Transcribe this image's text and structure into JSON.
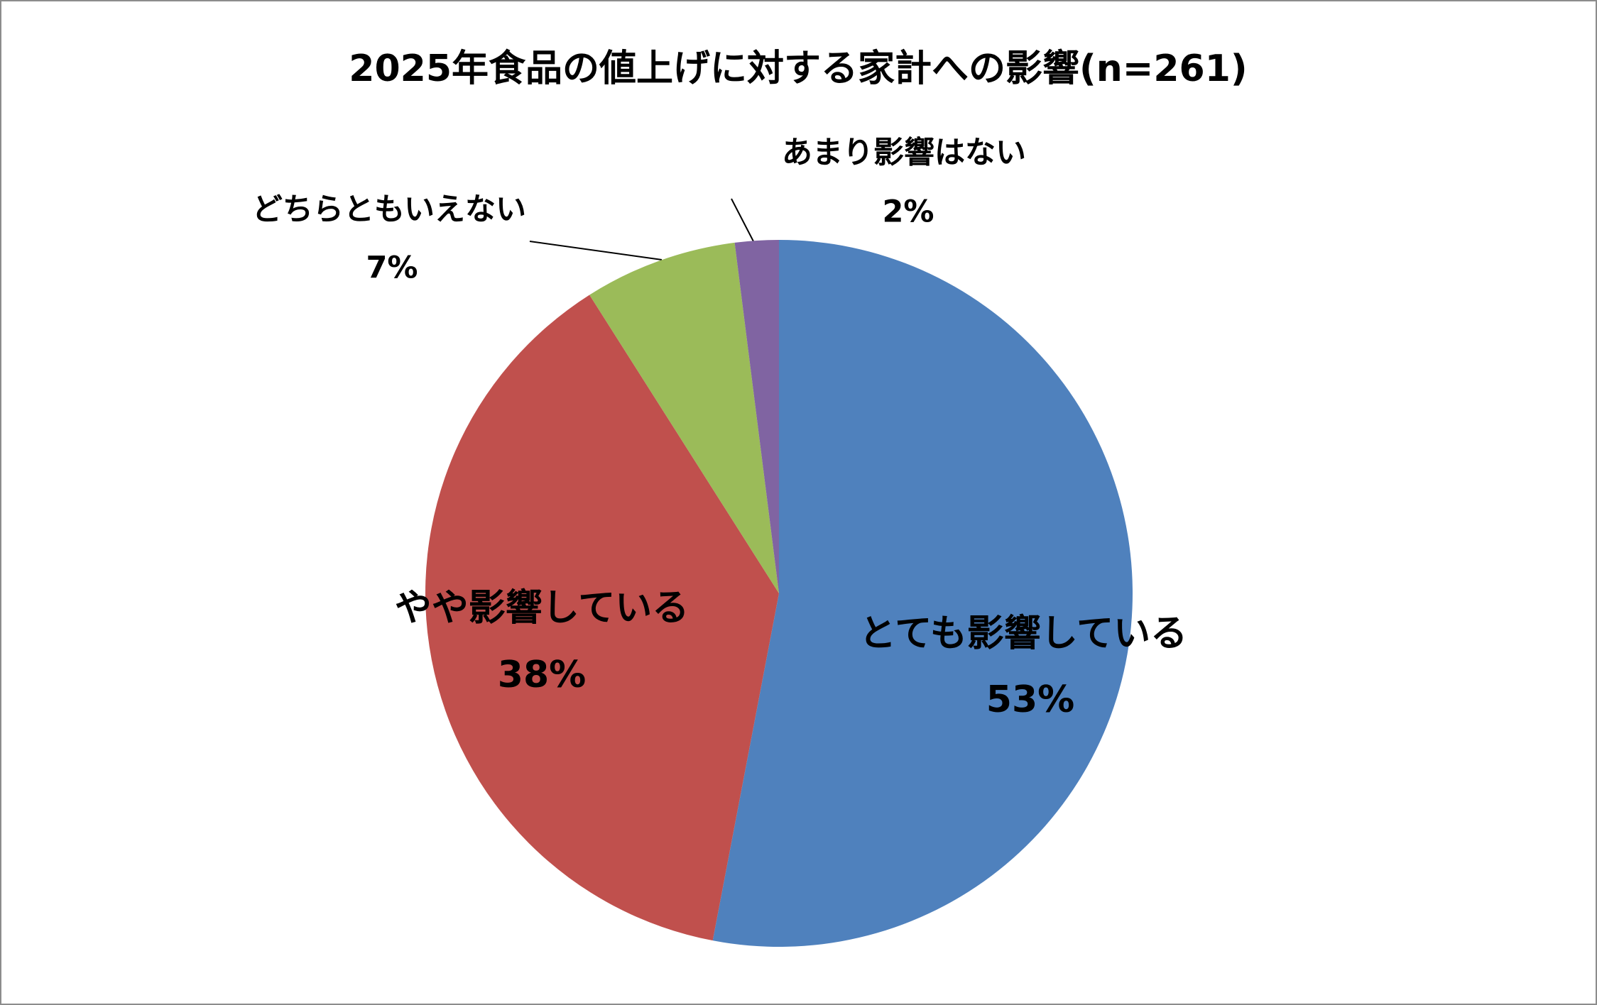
{
  "chart_data": {
    "type": "pie",
    "title": "2025年食品の値上げに対する家計への影響(n=261)",
    "categories": [
      "とても影響している",
      "やや影響している",
      "どちらともいえない",
      "あまり影響はない"
    ],
    "values": [
      53,
      38,
      7,
      2
    ],
    "value_labels": [
      "53%",
      "38%",
      "7%",
      "2%"
    ],
    "colors": [
      "#4f81bd",
      "#c0504d",
      "#9bbb59",
      "#8064a2"
    ]
  }
}
